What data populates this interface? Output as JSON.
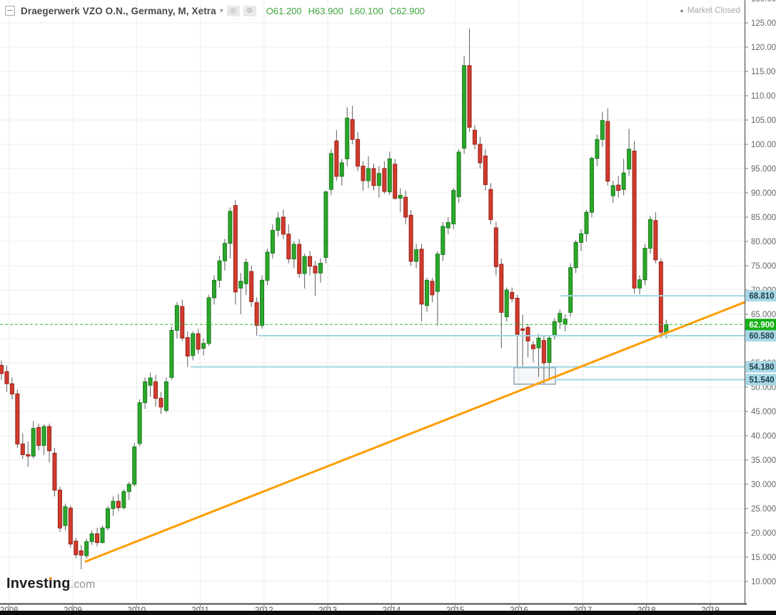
{
  "header": {
    "title": "Draegerwerk VZO O.N., Germany, M, Xetra",
    "caret": "▾",
    "icons": [
      {
        "name": "target-icon",
        "glyph": "◎"
      },
      {
        "name": "gear-icon",
        "glyph": "⚙"
      }
    ],
    "ohlc_display": {
      "open": "O61.200",
      "high": "H63.900",
      "low": "L60.100",
      "close": "C62.900"
    },
    "market_status": {
      "bullet": "●",
      "text": "Market Closed"
    }
  },
  "logo": {
    "part1": "Invest",
    "part2": "i",
    "part3": "ng",
    "tld": ".com"
  },
  "chart_data": {
    "type": "candlestick",
    "title": "Draegerwerk VZO O.N.",
    "exchange": "Xetra",
    "country": "Germany",
    "interval": "Monthly",
    "start_month": "2007-12",
    "ohlc_current": {
      "open": 61.2,
      "high": 63.9,
      "low": 60.1,
      "close": 62.9
    },
    "ylim": [
      10,
      125
    ],
    "y_tick_min": 10,
    "y_tick_max": 130,
    "y_tick_step": 5,
    "x_years": [
      2008,
      2009,
      2010,
      2011,
      2012,
      2013,
      2014,
      2015,
      2016,
      2017,
      2018,
      2019
    ],
    "grid": true,
    "colors": {
      "up_fill": "#2aa82a",
      "up_stroke": "#1c7a1c",
      "down_fill": "#d13b2e",
      "down_stroke": "#972015",
      "wick": "#5e5e5e",
      "level_line": "#9fd6e4",
      "level_tag_bg": "#a7d7e4",
      "level_tag_text": "#20404c",
      "current_line": "#2db82d",
      "current_tag_bg": "#15b015",
      "current_tag_text": "#ffffff",
      "trendline": "#ff9d00",
      "grid_line": "#ececec",
      "axis_line": "#6b6b6b",
      "axis_text": "#666666",
      "box_stroke": "#5f7d95"
    },
    "levels": [
      {
        "label": "68.810",
        "price": 68.81,
        "t_start": 2016.65
      },
      {
        "label": "60.580",
        "price": 60.58,
        "t_start": 2011.91
      },
      {
        "label": "54.180",
        "price": 54.18,
        "t_start": 2010.85
      },
      {
        "label": "51.540",
        "price": 51.54,
        "t_start": 2016.57
      }
    ],
    "current_price": {
      "label": "62.900",
      "price": 62.9
    },
    "trendline": {
      "from": {
        "t": 2009.2,
        "price": 14.1
      },
      "to": {
        "t": 2019.54,
        "price": 67.5
      }
    },
    "consolidation_box": {
      "t1": 2015.92,
      "t2": 2016.57,
      "price_top": 54.0,
      "price_bottom": 50.6
    },
    "candles_ohlc": [
      [
        54.5,
        55.5,
        51.5,
        52.8
      ],
      [
        53.2,
        54.5,
        49,
        50.7
      ],
      [
        50.7,
        52,
        47.5,
        48.6
      ],
      [
        48.6,
        49.5,
        37.5,
        38.3
      ],
      [
        38.3,
        40.5,
        35.2,
        36.1
      ],
      [
        36.1,
        38.8,
        33.6,
        35.8
      ],
      [
        35.8,
        43,
        35.3,
        41.5
      ],
      [
        41.7,
        42.5,
        37,
        38
      ],
      [
        38,
        42.3,
        36,
        41.9
      ],
      [
        41.9,
        42.5,
        34.5,
        36.9
      ],
      [
        36.4,
        37.5,
        27.5,
        28.8
      ],
      [
        28.8,
        29.5,
        20.2,
        21
      ],
      [
        21.5,
        26,
        20.5,
        25.4
      ],
      [
        25.1,
        25.6,
        17,
        17.7
      ],
      [
        18.3,
        19,
        14.8,
        15.5
      ],
      [
        16.3,
        17.5,
        12.5,
        15.4
      ],
      [
        15.3,
        18.8,
        14.7,
        18.2
      ],
      [
        18.2,
        20.5,
        17.5,
        19.8
      ],
      [
        19.8,
        21,
        17.2,
        18
      ],
      [
        18,
        21.5,
        17.8,
        21
      ],
      [
        21,
        25.5,
        20.5,
        25
      ],
      [
        25,
        27.5,
        23.5,
        26.5
      ],
      [
        26.5,
        28,
        24.5,
        25.2
      ],
      [
        25.2,
        29,
        24.8,
        28.5
      ],
      [
        28.5,
        30.5,
        26.8,
        30
      ],
      [
        30,
        38.5,
        29.5,
        37.7
      ],
      [
        38.4,
        47.5,
        37.8,
        46.8
      ],
      [
        46.8,
        52,
        45.5,
        51.1
      ],
      [
        50.4,
        53,
        48,
        51.9
      ],
      [
        51.1,
        52.5,
        46,
        47.7
      ],
      [
        47.7,
        49,
        44.5,
        45.9
      ],
      [
        45.2,
        52,
        44.8,
        51.1
      ],
      [
        52,
        62.5,
        51.5,
        61.7
      ],
      [
        61.7,
        67.5,
        60,
        66.8
      ],
      [
        66.6,
        68,
        59.5,
        60.1
      ],
      [
        60.2,
        61.5,
        54.2,
        56.4
      ],
      [
        56.5,
        61.5,
        55.5,
        61
      ],
      [
        61,
        62,
        56.8,
        57.8
      ],
      [
        58,
        60,
        56.5,
        59
      ],
      [
        59,
        69,
        58.5,
        68.4
      ],
      [
        68.4,
        73,
        67,
        72
      ],
      [
        72,
        77,
        70.5,
        76
      ],
      [
        76,
        80.5,
        74,
        79.6
      ],
      [
        79.6,
        87,
        76.5,
        86.2
      ],
      [
        87.4,
        88.5,
        67,
        69.6
      ],
      [
        70.4,
        73.5,
        65,
        71.8
      ],
      [
        71.3,
        76.5,
        69,
        75.7
      ],
      [
        73.8,
        75,
        66.5,
        67.6
      ],
      [
        67.4,
        68.5,
        60.6,
        62.7
      ],
      [
        62.7,
        73,
        62,
        72
      ],
      [
        72,
        78.5,
        71,
        77.8
      ],
      [
        77.6,
        83.5,
        76.5,
        82.3
      ],
      [
        82.3,
        86,
        81,
        84.8
      ],
      [
        85,
        86.5,
        80.5,
        81.5
      ],
      [
        81.5,
        83.5,
        75.5,
        76.4
      ],
      [
        76.4,
        80,
        74.5,
        79.4
      ],
      [
        79.4,
        80.5,
        72.5,
        73.4
      ],
      [
        73.4,
        77.5,
        70.3,
        76.9
      ],
      [
        76.9,
        78,
        73,
        74.9
      ],
      [
        74.9,
        76,
        68.8,
        73.5
      ],
      [
        73.5,
        76.5,
        71.5,
        75.5
      ],
      [
        76.7,
        90.5,
        75.5,
        90.2
      ],
      [
        90.7,
        99,
        89.5,
        98.1
      ],
      [
        100.7,
        102.9,
        92.5,
        93.4
      ],
      [
        93.4,
        97,
        91.5,
        96.2
      ],
      [
        97,
        107.6,
        95.5,
        105.4
      ],
      [
        105.1,
        107.9,
        100,
        101
      ],
      [
        101,
        102.5,
        94.5,
        95.5
      ],
      [
        95.5,
        96.5,
        90.5,
        92.5
      ],
      [
        92.5,
        97.5,
        91,
        95
      ],
      [
        95,
        96,
        90.5,
        91.5
      ],
      [
        91.5,
        95.5,
        89,
        94
      ],
      [
        95,
        96.5,
        89.8,
        90.3
      ],
      [
        90.2,
        98.5,
        89.5,
        97
      ],
      [
        95.9,
        97,
        88.5,
        88.9
      ],
      [
        88.9,
        91,
        86,
        89.5
      ],
      [
        89.1,
        90.5,
        83.5,
        85
      ],
      [
        85.4,
        86.5,
        75,
        75.9
      ],
      [
        75.9,
        79.5,
        74.5,
        78.3
      ],
      [
        78.4,
        79.5,
        63.5,
        67.1
      ],
      [
        66.8,
        72.5,
        65.5,
        72
      ],
      [
        71.8,
        72.5,
        67.5,
        69
      ],
      [
        69.7,
        78,
        62.7,
        77.4
      ],
      [
        77.3,
        84,
        76,
        83.1
      ],
      [
        82.8,
        85,
        81.5,
        83.9
      ],
      [
        83.6,
        91,
        82.5,
        90.5
      ],
      [
        89.2,
        99,
        88,
        98.4
      ],
      [
        99.2,
        118.2,
        98,
        116.2
      ],
      [
        116.2,
        123.8,
        102.5,
        103.5
      ],
      [
        102.9,
        104,
        99,
        100
      ],
      [
        100,
        101.5,
        95,
        96.2
      ],
      [
        97.6,
        99,
        90.5,
        91.7
      ],
      [
        90.7,
        92,
        83.5,
        84.5
      ],
      [
        82.8,
        84,
        73,
        74.8
      ],
      [
        75.3,
        76.5,
        58,
        65.4
      ],
      [
        64.5,
        70.5,
        63.5,
        70
      ],
      [
        69.5,
        70.5,
        67.5,
        68.2
      ],
      [
        68.3,
        69,
        53.9,
        60.9
      ],
      [
        62,
        64.9,
        53.9,
        61.7
      ],
      [
        62.3,
        63,
        56.1,
        59.5
      ],
      [
        58.7,
        59.5,
        55.1,
        57.9
      ],
      [
        58.1,
        61,
        52.1,
        60.1
      ],
      [
        59.6,
        60.5,
        50.7,
        55
      ],
      [
        55.1,
        60.5,
        51.7,
        60.1
      ],
      [
        60.5,
        64.2,
        59.8,
        63.5
      ],
      [
        63.4,
        66,
        62,
        65.2
      ],
      [
        63,
        65,
        61.5,
        64
      ],
      [
        65.4,
        75.5,
        64.5,
        74.6
      ],
      [
        74.6,
        80.3,
        73.5,
        79.8
      ],
      [
        79.8,
        82.5,
        78,
        81.6
      ],
      [
        81.6,
        86.5,
        80,
        86
      ],
      [
        86,
        97.5,
        85,
        97.1
      ],
      [
        97.1,
        102,
        95.5,
        101
      ],
      [
        101,
        106.7,
        99.5,
        104.9
      ],
      [
        104.7,
        107.4,
        91.5,
        92.4
      ],
      [
        89.4,
        92.5,
        87.9,
        91.5
      ],
      [
        91.6,
        93.5,
        89,
        90.5
      ],
      [
        90.7,
        97,
        89.5,
        94.1
      ],
      [
        94.9,
        103.2,
        93.5,
        99
      ],
      [
        98.6,
        100.6,
        69.3,
        70.4
      ],
      [
        70.4,
        73,
        69.1,
        72.1
      ],
      [
        72.1,
        79.5,
        71,
        78.6
      ],
      [
        78.6,
        85.2,
        77.5,
        84.5
      ],
      [
        84.3,
        86,
        75.5,
        76.2
      ],
      [
        75.8,
        76.5,
        60.1,
        61.3
      ],
      [
        61.2,
        63.9,
        60.1,
        62.9
      ]
    ]
  }
}
